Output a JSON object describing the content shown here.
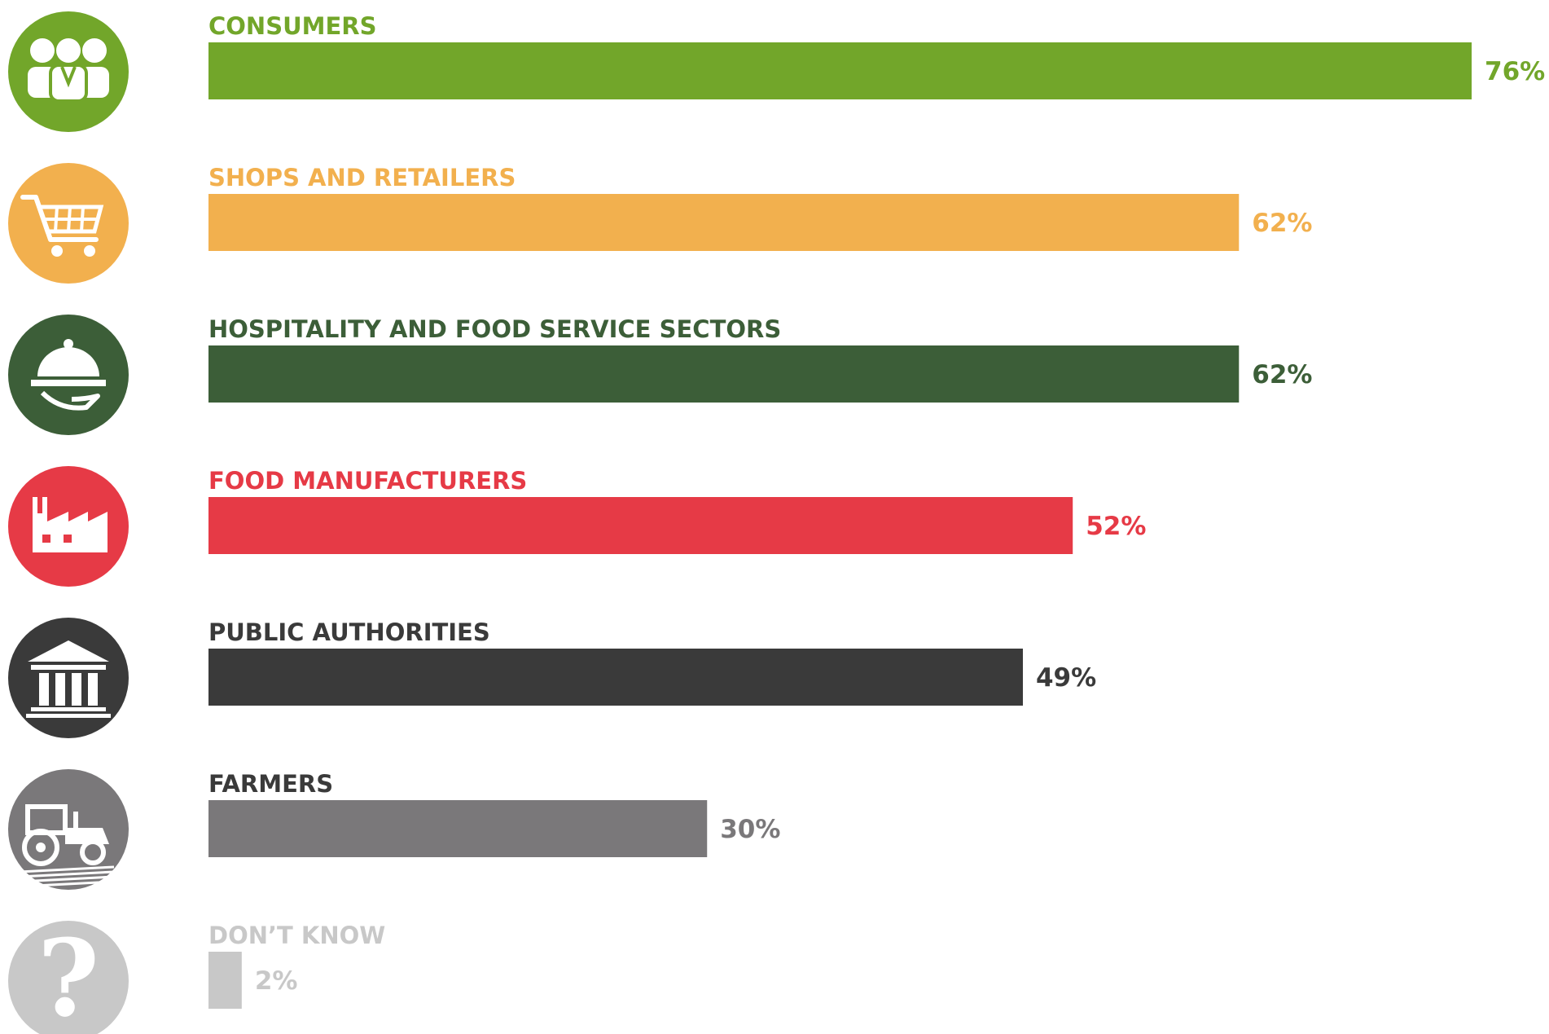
{
  "chart_data": {
    "type": "bar",
    "orientation": "horizontal",
    "grid": false,
    "legend": "none",
    "value_unit": "%",
    "xlim": [
      0,
      76
    ],
    "categories": [
      "CONSUMERS",
      "SHOPS AND RETAILERS",
      "HOSPITALITY AND  FOOD SERVICE SECTORS",
      "FOOD MANUFACTURERS",
      "PUBLIC AUTHORITIES",
      "FARMERS",
      "DON’T KNOW"
    ],
    "values": [
      76,
      62,
      62,
      52,
      49,
      30,
      2
    ],
    "value_labels": [
      "76%",
      "62%",
      "62%",
      "52%",
      "49%",
      "30%",
      "2%"
    ],
    "colors": [
      "#72a62a",
      "#f2b04e",
      "#3c5e38",
      "#e63a46",
      "#3a3a3a",
      "#7a787a",
      "#c8c8c8"
    ],
    "label_colors": [
      "#72a62a",
      "#f2b04e",
      "#3c5e38",
      "#e63a46",
      "#3a3a3a",
      "#3a3a3a",
      "#c8c8c8"
    ],
    "value_label_colors": [
      "#72a62a",
      "#f2b04e",
      "#3c5e38",
      "#e63a46",
      "#3a3a3a",
      "#7a787a",
      "#c8c8c8"
    ],
    "icons": [
      "people-icon",
      "shopping-cart-icon",
      "serving-cloche-icon",
      "factory-icon",
      "government-building-icon",
      "tractor-icon",
      "question-mark-icon"
    ]
  }
}
